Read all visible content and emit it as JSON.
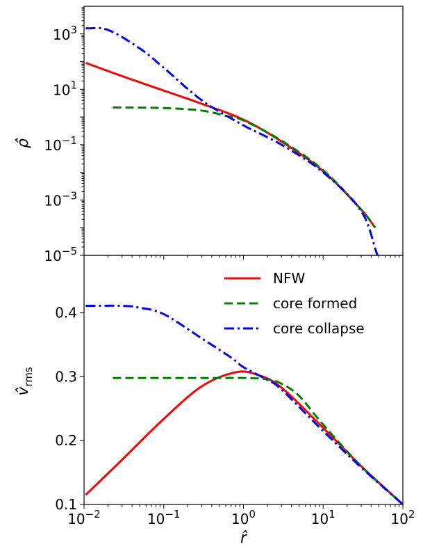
{
  "chart_data": [
    {
      "type": "line",
      "panel": "top",
      "ylabel": "ρ̂",
      "xlabel": "",
      "xscale": "log",
      "yscale": "log",
      "xlim": [
        0.01,
        100
      ],
      "ylim": [
        1e-05,
        10000
      ],
      "y_ticks": [
        {
          "value": 1000,
          "base": "10",
          "exp": "3"
        },
        {
          "value": 10,
          "base": "10",
          "exp": "1"
        },
        {
          "value": 0.1,
          "base": "10",
          "exp": "−1"
        },
        {
          "value": 0.001,
          "base": "10",
          "exp": "−3"
        },
        {
          "value": 1e-05,
          "base": "10",
          "exp": "−5"
        }
      ],
      "grid": false,
      "series": [
        {
          "name": "NFW",
          "color": "#ff0000",
          "style": "solid",
          "x": [
            0.0105,
            0.03,
            0.1,
            0.3,
            1,
            3,
            10,
            30,
            45
          ],
          "y": [
            90,
            30,
            9,
            3,
            0.8,
            0.13,
            0.011,
            0.00045,
            0.0001
          ]
        },
        {
          "name": "core formed",
          "color": "#008000",
          "style": "dashed",
          "x": [
            0.023,
            0.1,
            0.3,
            0.6,
            1,
            3,
            10,
            30,
            45
          ],
          "y": [
            2.2,
            2.1,
            1.7,
            1.1,
            0.75,
            0.14,
            0.012,
            0.00045,
            0.0001
          ]
        },
        {
          "name": "core collapse",
          "color": "#0000ff",
          "style": "dashdot",
          "x": [
            0.0105,
            0.02,
            0.05,
            0.1,
            0.3,
            1,
            3,
            10,
            30,
            48
          ],
          "y": [
            1600,
            1400,
            300,
            60,
            4,
            0.5,
            0.1,
            0.01,
            0.0004,
            1e-05
          ]
        }
      ]
    },
    {
      "type": "line",
      "panel": "bottom",
      "ylabel": "v̂rms",
      "ylabel_main": "v̂",
      "ylabel_sub": "rms",
      "xlabel": "r̂",
      "xscale": "log",
      "yscale": "linear",
      "xlim": [
        0.01,
        100
      ],
      "ylim": [
        0.1,
        0.49
      ],
      "x_ticks": [
        {
          "value": 0.01,
          "base": "10",
          "exp": "−2"
        },
        {
          "value": 0.1,
          "base": "10",
          "exp": "−1"
        },
        {
          "value": 1,
          "base": "10",
          "exp": "0"
        },
        {
          "value": 10,
          "base": "10",
          "exp": "1"
        },
        {
          "value": 100,
          "base": "10",
          "exp": "2"
        }
      ],
      "y_ticks": [
        {
          "value": 0.1,
          "label": "0.1"
        },
        {
          "value": 0.2,
          "label": "0.2"
        },
        {
          "value": 0.3,
          "label": "0.3"
        },
        {
          "value": 0.4,
          "label": "0.4"
        }
      ],
      "grid": false,
      "legend": "top-right",
      "series": [
        {
          "name": "NFW",
          "color": "#ff0000",
          "style": "solid",
          "x": [
            0.0105,
            0.03,
            0.1,
            0.3,
            0.8,
            1.5,
            3,
            10,
            30,
            100
          ],
          "y": [
            0.115,
            0.17,
            0.234,
            0.285,
            0.307,
            0.303,
            0.283,
            0.22,
            0.16,
            0.1
          ]
        },
        {
          "name": "core formed",
          "color": "#008000",
          "style": "dashed",
          "x": [
            0.023,
            0.1,
            0.5,
            1,
            2,
            3,
            5,
            10,
            30,
            100
          ],
          "y": [
            0.298,
            0.298,
            0.298,
            0.298,
            0.296,
            0.289,
            0.27,
            0.225,
            0.16,
            0.1
          ]
        },
        {
          "name": "core collapse",
          "color": "#0000ff",
          "style": "dashdot",
          "x": [
            0.0105,
            0.03,
            0.05,
            0.1,
            0.3,
            0.7,
            1,
            2,
            3,
            10,
            30,
            100
          ],
          "y": [
            0.411,
            0.411,
            0.408,
            0.398,
            0.36,
            0.33,
            0.315,
            0.295,
            0.28,
            0.215,
            0.158,
            0.1
          ]
        }
      ]
    }
  ]
}
